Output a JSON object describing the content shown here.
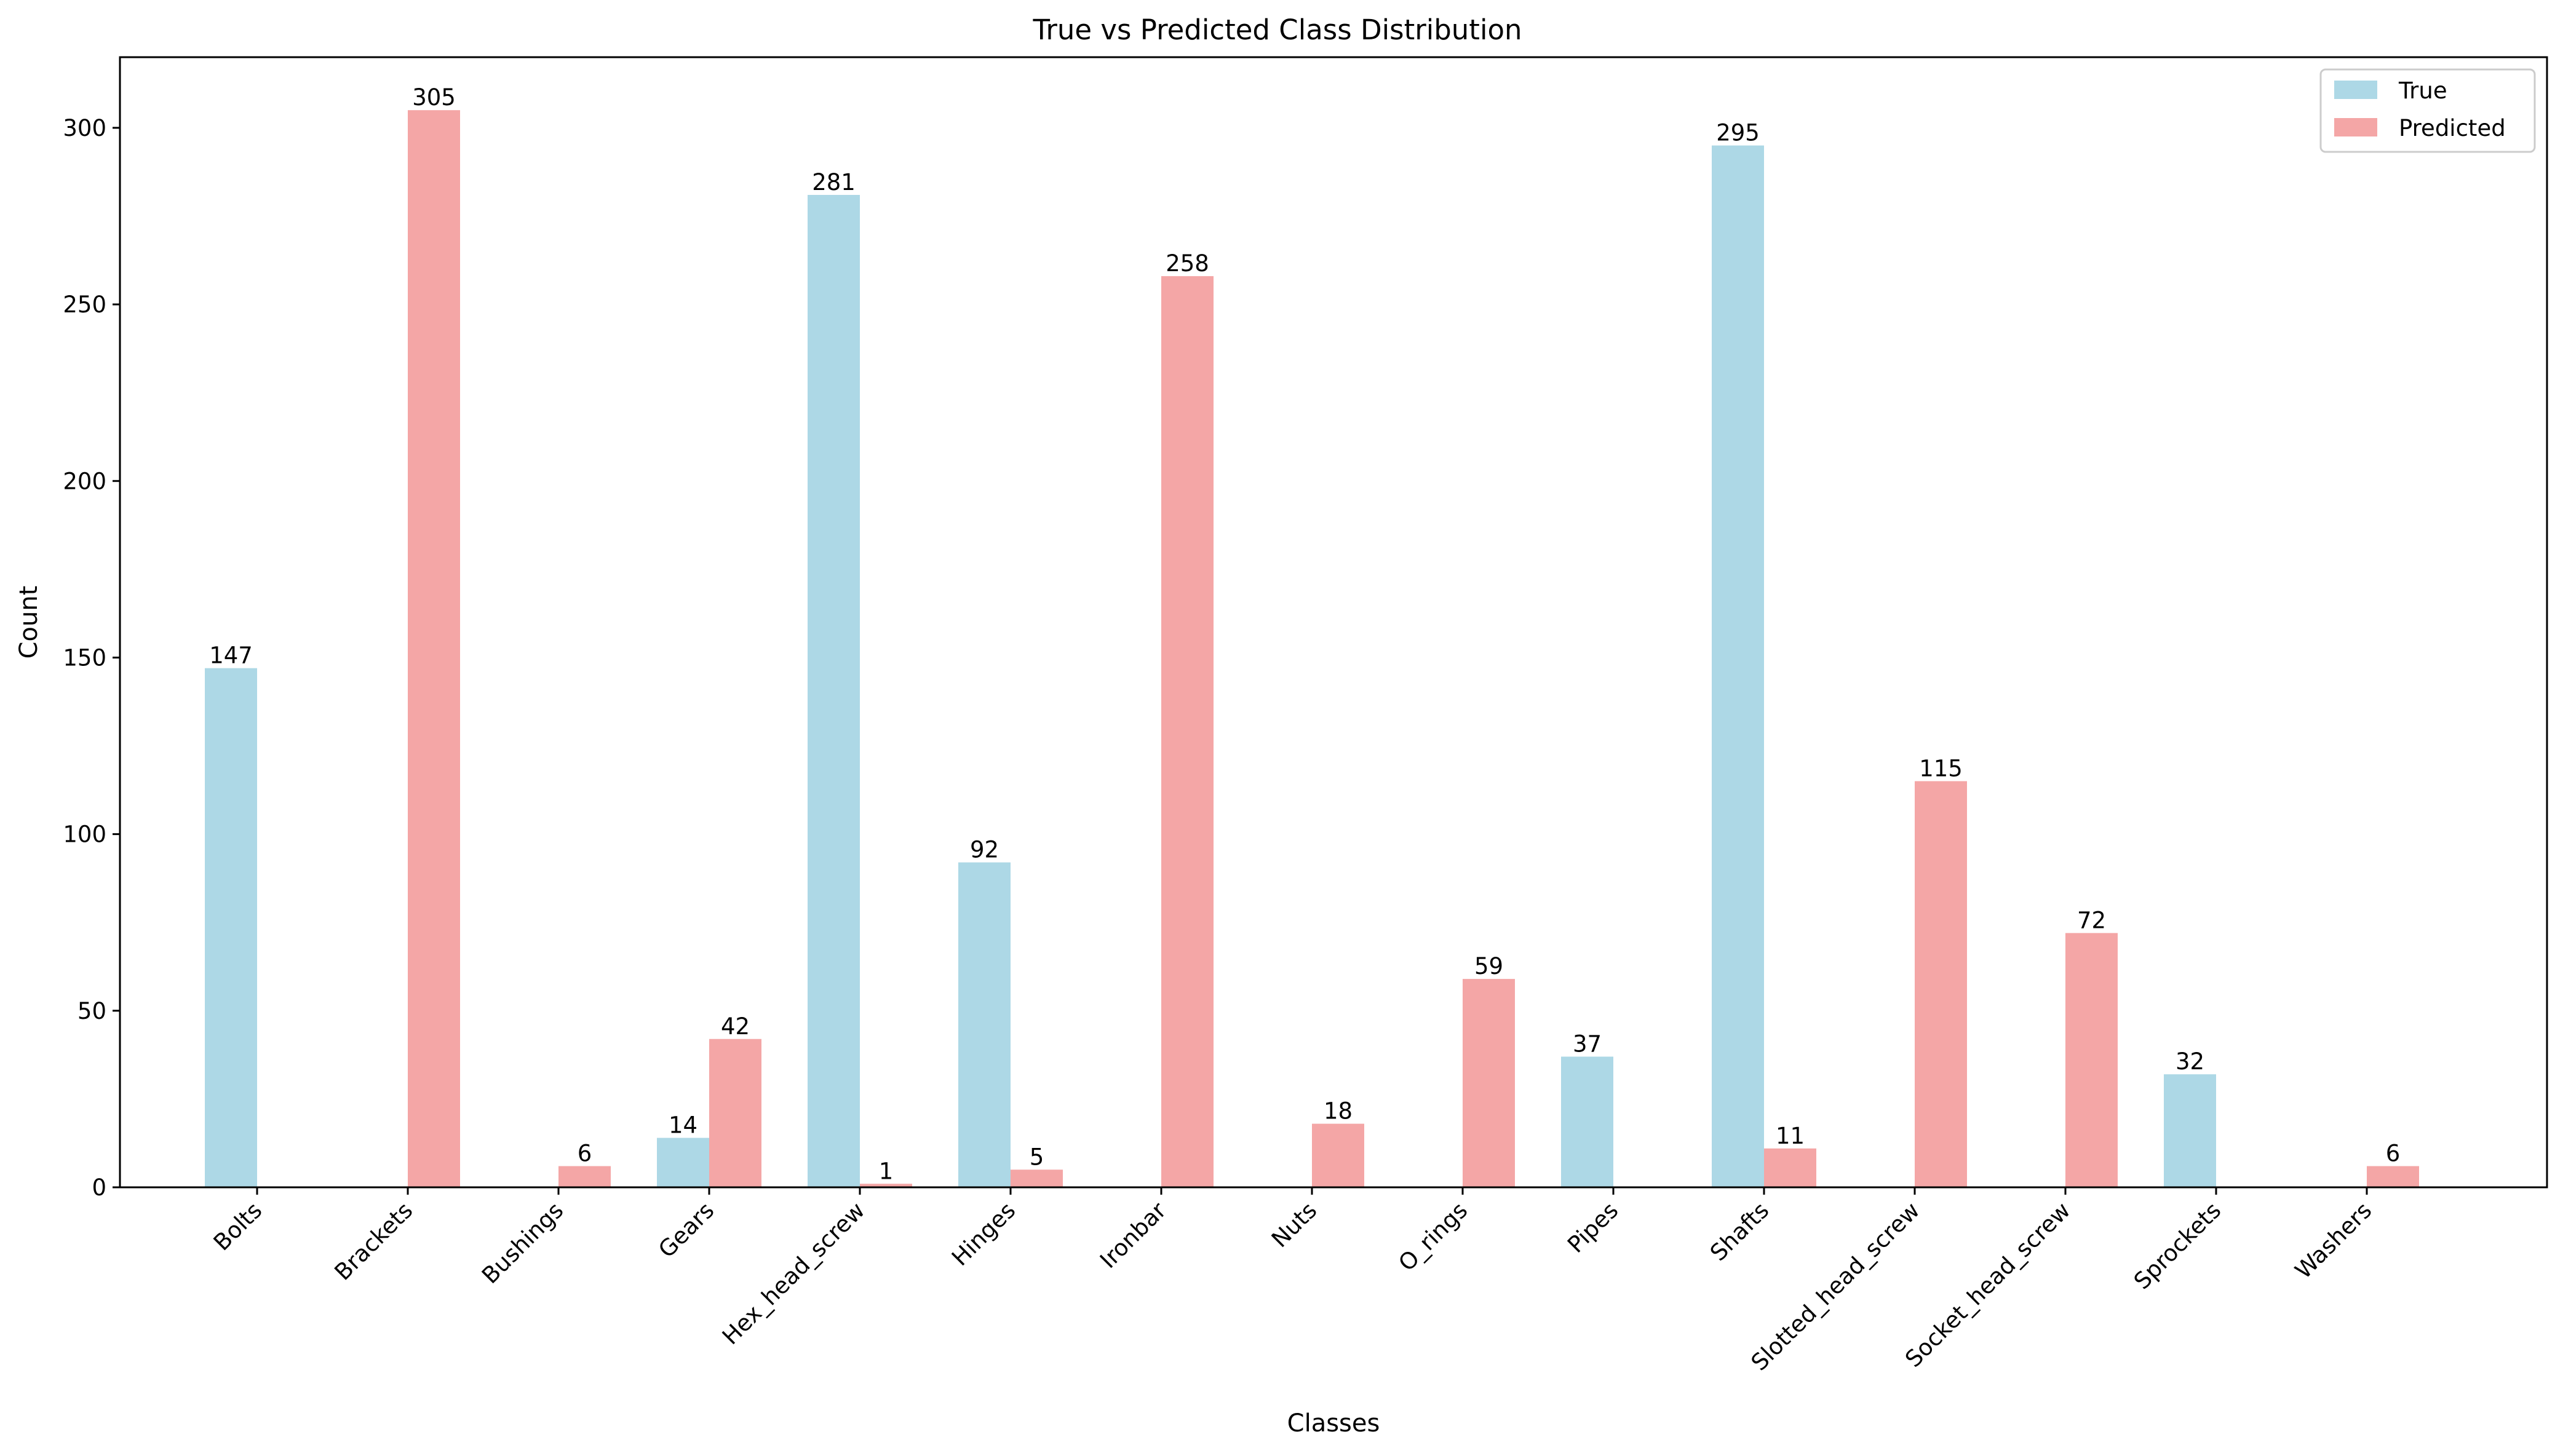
{
  "chart_data": {
    "type": "bar",
    "title": "True vs Predicted Class Distribution",
    "xlabel": "Classes",
    "ylabel": "Count",
    "categories": [
      "Bolts",
      "Brackets",
      "Bushings",
      "Gears",
      "Hex_head_screw",
      "Hinges",
      "Ironbar",
      "Nuts",
      "O_rings",
      "Pipes",
      "Shafts",
      "Slotted_head_screw",
      "Socket_head_screw",
      "Sprockets",
      "Washers"
    ],
    "series": [
      {
        "name": "True",
        "color": "#add8e6",
        "values": [
          147,
          0,
          0,
          14,
          281,
          92,
          0,
          0,
          0,
          37,
          295,
          0,
          0,
          32,
          0
        ]
      },
      {
        "name": "Predicted",
        "color": "#f4a6a6",
        "values": [
          0,
          305,
          6,
          42,
          1,
          5,
          258,
          18,
          59,
          0,
          11,
          115,
          72,
          0,
          6
        ]
      }
    ],
    "ylim": [
      0,
      320
    ],
    "yticks": [
      0,
      50,
      100,
      150,
      200,
      250,
      300
    ],
    "grid": false,
    "legend_position": "top-right"
  }
}
